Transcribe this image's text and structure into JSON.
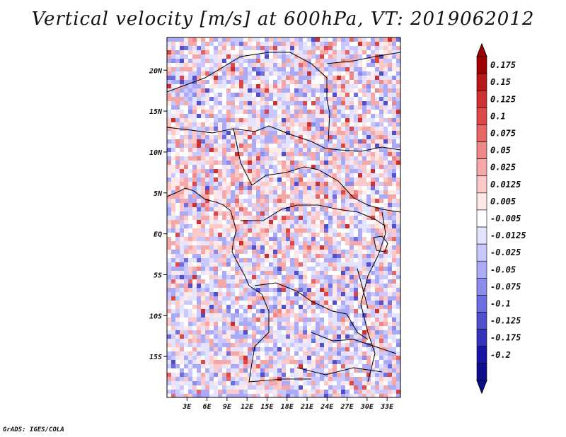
{
  "title": "Vertical velocity [m/s] at 600hPa, VT: 2019062012",
  "credit": "GrADS: IGES/COLA",
  "colors": {
    "negative_strong": "#1a0dab",
    "negative_light": "#c8c8ff",
    "neutral": "#ffffff",
    "positive_light": "#ffc8c8",
    "positive_strong": "#a00000",
    "border": "#000000"
  },
  "map": {
    "lon_range": [
      0,
      35
    ],
    "lat_range": [
      -20,
      24
    ],
    "lat_ticks": [
      {
        "value": 20,
        "label": "20N"
      },
      {
        "value": 15,
        "label": "15N"
      },
      {
        "value": 10,
        "label": "10N"
      },
      {
        "value": 5,
        "label": "5N"
      },
      {
        "value": 0,
        "label": "EQ"
      },
      {
        "value": -5,
        "label": "5S"
      },
      {
        "value": -10,
        "label": "10S"
      },
      {
        "value": -15,
        "label": "15S"
      }
    ],
    "lon_ticks": [
      {
        "value": 3,
        "label": "3E"
      },
      {
        "value": 6,
        "label": "6E"
      },
      {
        "value": 9,
        "label": "9E"
      },
      {
        "value": 12,
        "label": "12E"
      },
      {
        "value": 15,
        "label": "15E"
      },
      {
        "value": 18,
        "label": "18E"
      },
      {
        "value": 21,
        "label": "21E"
      },
      {
        "value": 24,
        "label": "24E"
      },
      {
        "value": 27,
        "label": "27E"
      },
      {
        "value": 30,
        "label": "30E"
      },
      {
        "value": 33,
        "label": "33E"
      }
    ]
  },
  "colorbar": {
    "labels": [
      "0.175",
      "0.15",
      "0.125",
      "0.1",
      "0.075",
      "0.05",
      "0.025",
      "0.0125",
      "0.005",
      "-0.005",
      "-0.0125",
      "-0.025",
      "-0.05",
      "-0.075",
      "-0.1",
      "-0.125",
      "-0.175",
      "-0.2"
    ],
    "colors": [
      "#a00000",
      "#b81818",
      "#cc3030",
      "#dc4848",
      "#e66666",
      "#ee8888",
      "#f6a8a8",
      "#fcc8c8",
      "#ffe8e8",
      "#ffffff",
      "#e4e4ff",
      "#c8c8ff",
      "#aaaaf6",
      "#8c8ced",
      "#6e6ee0",
      "#5050cf",
      "#3232bb",
      "#1a14a5",
      "#0c0c8c"
    ]
  }
}
